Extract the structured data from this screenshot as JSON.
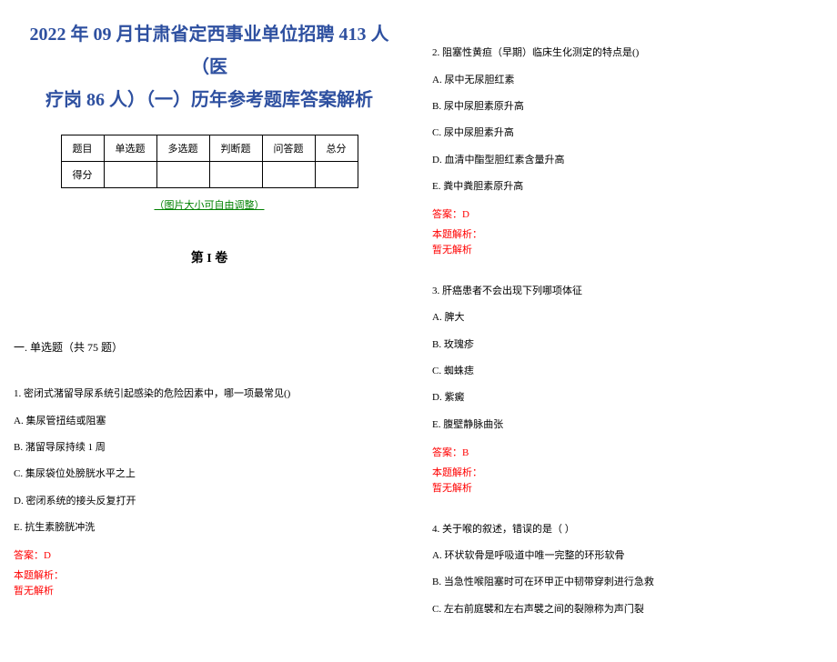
{
  "title_line1": "2022 年 09 月甘肃省定西事业单位招聘 413 人（医",
  "title_line2": "疗岗 86 人）（一）历年参考题库答案解析",
  "table": {
    "row1": [
      "题目",
      "单选题",
      "多选题",
      "判断题",
      "问答题",
      "总分"
    ],
    "row2_label": "得分"
  },
  "resize_note": "（图片大小可自由调整）",
  "volume": "第 I 卷",
  "section1": "一. 单选题（共 75 题）",
  "q1": {
    "stem": "1. 密闭式潴留导尿系统引起感染的危险因素中，哪一项最常见()",
    "A": "A. 集尿管扭结或阻塞",
    "B": "B. 潴留导尿持续 1 周",
    "C": "C. 集尿袋位处膀胱水平之上",
    "D": "D. 密闭系统的接头反复打开",
    "E": "E. 抗生素膀胱冲洗",
    "answer": "答案：D",
    "analysis_label": "本题解析：",
    "analysis": "暂无解析"
  },
  "q2": {
    "stem": "2. 阻塞性黄疸（早期）临床生化测定的特点是()",
    "A": "A. 尿中无尿胆红素",
    "B": "B. 尿中尿胆素原升高",
    "C": "C. 尿中尿胆素升高",
    "D": "D. 血清中酯型胆红素含量升高",
    "E": "E. 粪中粪胆素原升高",
    "answer": "答案：D",
    "analysis_label": "本题解析：",
    "analysis": "暂无解析"
  },
  "q3": {
    "stem": "3. 肝癌患者不会出现下列哪项体征",
    "A": "A. 脾大",
    "B": "B. 玫瑰疹",
    "C": "C. 蜘蛛痣",
    "D": "D. 紫癜",
    "E": "E. 腹壁静脉曲张",
    "answer": "答案：B",
    "analysis_label": "本题解析：",
    "analysis": "暂无解析"
  },
  "q4": {
    "stem": "4. 关于喉的叙述，错误的是（ ）",
    "A": "A. 环状软骨是呼吸道中唯一完整的环形软骨",
    "B": "B. 当急性喉阻塞时可在环甲正中韧带穿刺进行急救",
    "C": "C. 左右前庭襞和左右声襞之间的裂隙称为声门裂"
  }
}
